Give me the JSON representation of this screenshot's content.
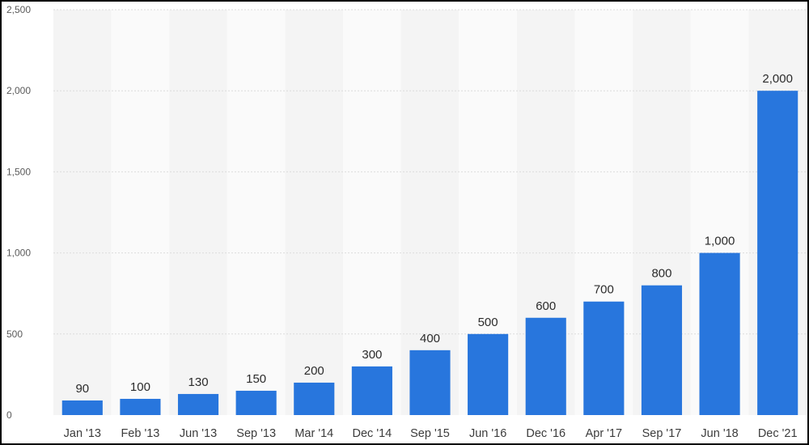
{
  "chart_data": {
    "type": "bar",
    "categories": [
      "Jan '13",
      "Feb '13",
      "Jun '13",
      "Sep '13",
      "Mar '14",
      "Dec '14",
      "Sep '15",
      "Jun '16",
      "Dec '16",
      "Apr '17",
      "Sep '17",
      "Jun '18",
      "Dec '21"
    ],
    "values": [
      90,
      100,
      130,
      150,
      200,
      300,
      400,
      500,
      600,
      700,
      800,
      1000,
      2000
    ],
    "value_labels": [
      "90",
      "100",
      "130",
      "150",
      "200",
      "300",
      "400",
      "500",
      "600",
      "700",
      "800",
      "1,000",
      "2,000"
    ],
    "title": "",
    "xlabel": "",
    "ylabel": "",
    "ylim": [
      0,
      2500
    ],
    "yticks": [
      0,
      500,
      1000,
      1500,
      2000,
      2500
    ],
    "ytick_labels": [
      "0",
      "500",
      "1,000",
      "1,500",
      "2,000",
      "2,500"
    ],
    "grid": true,
    "legend": "none",
    "bar_color": "#2876dd",
    "band_colors": [
      "#f4f4f4",
      "#fafafa"
    ],
    "grid_color": "#dcdcdc",
    "frame_color": "#000000"
  }
}
